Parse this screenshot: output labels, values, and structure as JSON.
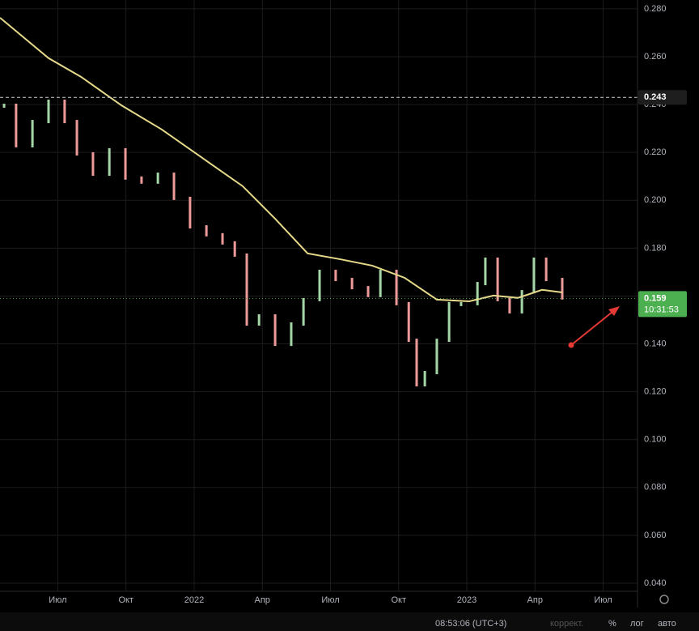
{
  "chart_data": {
    "type": "candlestick",
    "xlim": [
      2021.288,
      2023.626
    ],
    "xticks": [
      {
        "value": 2021.5,
        "label": "Июл"
      },
      {
        "value": 2021.75,
        "label": "Окт"
      },
      2022,
      {
        "value": 2022.25,
        "label": "Апр"
      },
      {
        "value": 2022.5,
        "label": "Июл"
      },
      {
        "value": 2022.75,
        "label": "Окт"
      },
      2023,
      {
        "value": 2023.25,
        "label": "Апр"
      },
      {
        "value": 2023.5,
        "label": "Июл"
      }
    ],
    "ylim": [
      0.0366,
      0.2837
    ],
    "yticks": [
      {
        "value": 0.04,
        "label": "0.040"
      },
      {
        "value": 0.06,
        "label": "0.060"
      },
      {
        "value": 0.08,
        "label": "0.080"
      },
      {
        "value": 0.1,
        "label": "0.100"
      },
      {
        "value": 0.12,
        "label": "0.120"
      },
      {
        "value": 0.14,
        "label": "0.140"
      },
      {
        "value": 0.16,
        "label": "0.160"
      },
      {
        "value": 0.18,
        "label": "0.180"
      },
      {
        "value": 0.2,
        "label": "0.200"
      },
      {
        "value": 0.22,
        "label": "0.220"
      },
      {
        "value": 0.24,
        "label": "0.240"
      },
      {
        "value": 0.26,
        "label": "0.260"
      },
      {
        "value": 0.28,
        "label": "0.280"
      }
    ],
    "grid": true,
    "up_color": "#a5d6a7",
    "down_color": "#ef9a9a",
    "price": {
      "x": [
        2021.303,
        2021.347,
        2021.407,
        2021.466,
        2021.525,
        2021.57,
        2021.629,
        2021.689,
        2021.748,
        2021.807,
        2021.867,
        2021.926,
        2021.985,
        2022.045,
        2022.104,
        2022.149,
        2022.193,
        2022.238,
        2022.297,
        2022.356,
        2022.401,
        2022.46,
        2022.519,
        2022.579,
        2022.638,
        2022.683,
        2022.742,
        2022.787,
        2022.816,
        2022.846,
        2022.89,
        2022.935,
        2022.979,
        2023.039,
        2023.068,
        2023.113,
        2023.157,
        2023.202,
        2023.246,
        2023.291,
        2023.35
      ],
      "values": [
        0.2397,
        0.2228,
        0.2329,
        0.2414,
        0.2329,
        0.2194,
        0.2109,
        0.2211,
        0.2093,
        0.2076,
        0.2109,
        0.2008,
        0.1889,
        0.1856,
        0.1822,
        0.1771,
        0.1483,
        0.1517,
        0.1398,
        0.1483,
        0.1585,
        0.1703,
        0.1669,
        0.1635,
        0.1602,
        0.1703,
        0.1568,
        0.1415,
        0.1229,
        0.128,
        0.1415,
        0.1568,
        0.1568,
        0.1652,
        0.1754,
        0.1585,
        0.1534,
        0.1618,
        0.1754,
        0.1669,
        0.1592
      ]
    },
    "moving_average": {
      "color": "#e6d98a",
      "x": [
        2021.288,
        2021.466,
        2021.585,
        2021.733,
        2021.881,
        2022.03,
        2022.178,
        2022.297,
        2022.416,
        2022.534,
        2022.653,
        2022.772,
        2022.89,
        2023.009,
        2023.098,
        2023.187,
        2023.276,
        2023.35
      ],
      "values": [
        0.2763,
        0.2594,
        0.2516,
        0.2397,
        0.2296,
        0.2177,
        0.2059,
        0.1923,
        0.1778,
        0.1754,
        0.1727,
        0.1676,
        0.1585,
        0.1578,
        0.1602,
        0.1592,
        0.1626,
        0.1615
      ]
    },
    "price_lines": [
      {
        "value": 0.243,
        "label": "0.243",
        "color": "#d0d0d0"
      },
      {
        "value": 0.159,
        "label": "0.159",
        "countdown": "10:31:53",
        "color": "#4caf50"
      }
    ]
  },
  "toolbar": {
    "time": "08:53:06 (UTC+3)",
    "buttons": [
      "коррект.",
      "%",
      "лог",
      "авто"
    ]
  }
}
